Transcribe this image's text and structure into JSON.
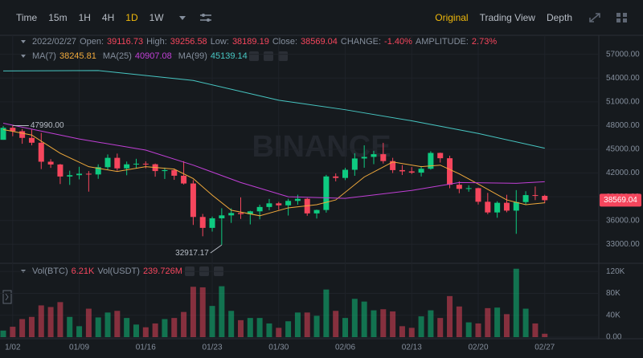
{
  "toolbar": {
    "intervals": [
      "Time",
      "15m",
      "1H",
      "4H",
      "1D",
      "1W"
    ],
    "active_interval": "1D",
    "views": [
      "Original",
      "Trading View",
      "Depth"
    ],
    "active_view": "Original"
  },
  "info": {
    "date": "2022/02/27",
    "open": "Open:",
    "high": "High:",
    "low": "Low:",
    "close": "Close:",
    "change_label": "CHANGE:",
    "change": "-1.40%",
    "amplitude_label": "AMPLITUDE:",
    "amplitude": "2.73%"
  },
  "watermark": "BINANCE",
  "chart_data": {
    "type": "candlestick",
    "categories": [
      null,
      "1/02",
      null,
      null,
      null,
      null,
      null,
      null,
      "01/09",
      null,
      null,
      null,
      null,
      null,
      null,
      "01/16",
      null,
      null,
      null,
      null,
      null,
      null,
      "01/23",
      null,
      null,
      null,
      null,
      null,
      null,
      "01/30",
      null,
      null,
      null,
      null,
      null,
      null,
      "02/06",
      null,
      null,
      null,
      null,
      null,
      null,
      "02/13",
      null,
      null,
      null,
      null,
      null,
      null,
      "02/20",
      null,
      null,
      null,
      null,
      null,
      null,
      "02/27"
    ],
    "open": [
      46200,
      47720,
      47290,
      46440,
      45830,
      43430,
      43080,
      41560,
      41730,
      41910,
      41820,
      42740,
      43920,
      42590,
      43100,
      43180,
      43110,
      42250,
      42370,
      41660,
      40680,
      36450,
      35070,
      36280,
      36650,
      36950,
      36810,
      37160,
      37710,
      38170,
      37920,
      38480,
      38740,
      36900,
      37330,
      41570,
      41380,
      42410,
      43840,
      44040,
      44380,
      43510,
      42370,
      42210,
      42050,
      42540,
      44540,
      43870,
      40520,
      40000,
      40090,
      38370,
      37020,
      38240,
      37250,
      38330,
      39210,
      39116.73
    ],
    "high": [
      47940,
      47990,
      47570,
      47500,
      47070,
      43750,
      43150,
      42300,
      42790,
      42250,
      43100,
      44350,
      44460,
      43450,
      43800,
      43480,
      43200,
      42680,
      42570,
      43500,
      41100,
      36830,
      36500,
      37550,
      37540,
      38920,
      37230,
      38000,
      38720,
      38360,
      38740,
      39260,
      38850,
      37380,
      41770,
      41950,
      42660,
      44500,
      45500,
      44800,
      45820,
      43920,
      43000,
      42750,
      42880,
      44750,
      44580,
      44190,
      40950,
      40450,
      40150,
      39490,
      38430,
      39250,
      39840,
      39700,
      40300,
      39256.58
    ],
    "low": [
      46200,
      46650,
      45700,
      45500,
      42500,
      42650,
      40610,
      40500,
      41200,
      39650,
      41270,
      42450,
      42300,
      41720,
      42560,
      42590,
      41540,
      41250,
      41140,
      40550,
      35440,
      34010,
      34600,
      32917.17,
      35700,
      36200,
      35510,
      36150,
      37300,
      37350,
      36630,
      38000,
      36600,
      36250,
      37000,
      40950,
      41110,
      41650,
      42670,
      43120,
      43200,
      42000,
      41750,
      41880,
      41570,
      42430,
      43320,
      40080,
      39450,
      39640,
      38020,
      36800,
      36350,
      37040,
      34320,
      38000,
      38580,
      38189.19
    ],
    "close": [
      47720,
      47290,
      46440,
      45830,
      43430,
      43080,
      41560,
      41730,
      41910,
      41820,
      42740,
      43920,
      42590,
      43100,
      43180,
      43110,
      42250,
      42370,
      41660,
      40680,
      36450,
      35070,
      36280,
      36650,
      36950,
      36810,
      37160,
      37710,
      38170,
      37920,
      38480,
      38740,
      36900,
      37330,
      41570,
      41380,
      42410,
      43840,
      44040,
      44380,
      43510,
      42370,
      42210,
      42050,
      42540,
      44540,
      43870,
      40520,
      40000,
      40090,
      38370,
      37020,
      38240,
      37250,
      38330,
      39210,
      39110,
      38569.04
    ],
    "up_color": "#0ecb81",
    "down_color": "#f6465d",
    "ylim": [
      30900,
      59300
    ],
    "yticks": [
      {
        "value": 57000,
        "label": "57000.00"
      },
      {
        "value": 54000,
        "label": "54000.00"
      },
      {
        "value": 51000,
        "label": "51000.00"
      },
      {
        "value": 48000,
        "label": "48000.00"
      },
      {
        "value": 45000,
        "label": "45000.00"
      },
      {
        "value": 42000,
        "label": "42000.00"
      },
      {
        "value": 39000,
        "label": "39000.00"
      },
      {
        "value": 36000,
        "label": "36000.00"
      },
      {
        "value": 33000,
        "label": "33000.00"
      }
    ],
    "annotations": [
      {
        "kind": "high",
        "value": 47990,
        "label": "47990.00"
      },
      {
        "kind": "low",
        "value": 32917.17,
        "label": "32917.17"
      }
    ],
    "ma": [
      {
        "name": "MA(7)",
        "color": "#f0a93b",
        "x": [
          0,
          3,
          6,
          9,
          12,
          15,
          18,
          20,
          22,
          24,
          27,
          30,
          33,
          35,
          38,
          41,
          44,
          46,
          48,
          50,
          53,
          55,
          57
        ],
        "values": [
          47500,
          46800,
          44500,
          42800,
          42200,
          42800,
          42500,
          41300,
          39200,
          37300,
          36600,
          37600,
          38000,
          38600,
          41500,
          43400,
          42800,
          43000,
          41900,
          40600,
          38600,
          38000,
          38245.81
        ]
      },
      {
        "name": "MA(25)",
        "color": "#c13fd6",
        "x": [
          0,
          8,
          15,
          20,
          25,
          30,
          36,
          43,
          48,
          54,
          57
        ],
        "values": [
          48300,
          46300,
          44900,
          43000,
          40800,
          39000,
          38800,
          39800,
          40800,
          40700,
          40907.08
        ]
      },
      {
        "name": "MA(99)",
        "color": "#47c6c2",
        "x": [
          0,
          10,
          20,
          29,
          36,
          43,
          50,
          57
        ],
        "values": [
          54900,
          54950,
          53700,
          51200,
          50000,
          48600,
          47000,
          45139.14
        ]
      }
    ],
    "volume": {
      "type": "bar",
      "name": "Vol(BTC)",
      "latest_label": "6.21K",
      "usdt_name": "Vol(USDT)",
      "usdt_label": "239.726M",
      "values": [
        12000,
        19000,
        33000,
        37000,
        58000,
        55000,
        64000,
        37000,
        20000,
        52000,
        36000,
        45000,
        48000,
        35000,
        23000,
        18000,
        25000,
        33000,
        35000,
        46000,
        92000,
        91000,
        57000,
        93000,
        48000,
        31000,
        35000,
        35000,
        25000,
        17000,
        29000,
        45000,
        45000,
        39000,
        87000,
        48000,
        35000,
        70000,
        65000,
        49000,
        51000,
        47000,
        20000,
        17000,
        38000,
        49000,
        35000,
        75000,
        56000,
        27000,
        25000,
        53000,
        54000,
        42000,
        125000,
        52000,
        25000,
        6210
      ],
      "ylim": [
        0,
        132000
      ],
      "yticks": [
        {
          "value": 120000,
          "label": "120K"
        },
        {
          "value": 80000,
          "label": "80K"
        },
        {
          "value": 40000,
          "label": "40K"
        },
        {
          "value": 0,
          "label": "0.00"
        }
      ]
    }
  }
}
